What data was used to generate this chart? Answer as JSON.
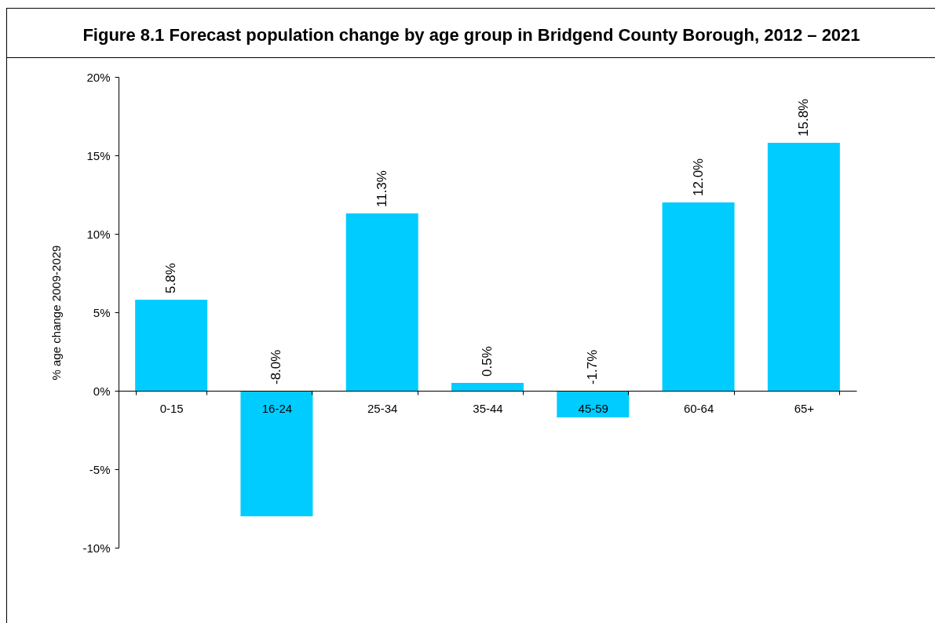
{
  "chart_data": {
    "type": "bar",
    "title": "Figure 8.1 Forecast population change by age group in Bridgend County Borough, 2012 – 2021",
    "ylabel": "% age change 2009-2029",
    "categories": [
      "0-15",
      "16-24",
      "25-34",
      "35-44",
      "45-59",
      "60-64",
      "65+"
    ],
    "values": [
      5.8,
      -8.0,
      11.3,
      0.5,
      -1.7,
      12.0,
      15.8
    ],
    "value_labels": [
      "5.8%",
      "-8.0%",
      "11.3%",
      "0.5%",
      "-1.7%",
      "12.0%",
      "15.8%"
    ],
    "color": "#00ccff",
    "ylim": [
      -10,
      20
    ],
    "yticks": [
      {
        "value": -10,
        "label": "-10%"
      },
      {
        "value": -5,
        "label": "-5%"
      },
      {
        "value": 0,
        "label": "0%"
      },
      {
        "value": 5,
        "label": "5%"
      },
      {
        "value": 10,
        "label": "10%"
      },
      {
        "value": 15,
        "label": "15%"
      },
      {
        "value": 20,
        "label": "20%"
      }
    ],
    "grid": false
  }
}
